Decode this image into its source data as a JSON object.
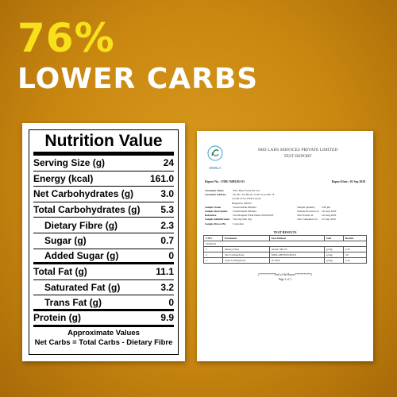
{
  "headline": {
    "big": "76%",
    "sub": "LOWER CARBS"
  },
  "nutrition": {
    "title": "Nutrition Value",
    "rows": [
      {
        "name": "Serving Size (g)",
        "value": "24"
      },
      {
        "name": "Energy (kcal)",
        "value": "161.0"
      },
      {
        "name": "Net Carbohydrates (g)",
        "value": "3.0"
      },
      {
        "name": "Total Carbohydrates (g)",
        "value": "5.3"
      },
      {
        "name": "Dietary Fibre (g)",
        "value": "2.3"
      },
      {
        "name": "Sugar (g)",
        "value": "0.7"
      },
      {
        "name": "Added Sugar (g)",
        "value": "0"
      },
      {
        "name": "Total Fat (g)",
        "value": "11.1"
      },
      {
        "name": "Saturated Fat (g)",
        "value": "3.2"
      },
      {
        "name": "Trans Fat (g)",
        "value": "0"
      },
      {
        "name": "Protein (g)",
        "value": "9.9"
      }
    ],
    "footnote_1": "Approximate Values",
    "footnote_2": "Net Carbs = Total Carbs - Dietary Fibre"
  },
  "report": {
    "logo_label": "SMSLA",
    "company": "SMS LABS SERVICES PRIVATE LIMITED",
    "doc_title": "TEST REPORT",
    "report_no_label": "Report No. :",
    "report_no": "FDB-76081102-03",
    "report_date_label": "Report Date :",
    "report_date": "01 Sep 2020",
    "info": [
      {
        "k": "Customer Name",
        "v": ": M/s. Baja Foods Pvt Ltd",
        "k2": "",
        "v2": ""
      },
      {
        "k": "Customer Address",
        "v": ": No.8C, 3rd Block, 14 D Cross, 8th ~8",
        "k2": "",
        "v2": ""
      },
      {
        "k": "",
        "v": "  1st/2D Cross, HSR Layout",
        "k2": "",
        "v2": ""
      },
      {
        "k": "",
        "v": "  Bangalore 560102",
        "k2": "",
        "v2": ""
      },
      {
        "k": "Sample Name",
        "v": ": South Indian Mixture",
        "k2": "Sample Quantity",
        "v2": ": 240 gm"
      },
      {
        "k": "Sample Description",
        "v": ": South Indian Mixture",
        "k2": "Sample Received on",
        "v2": ": 20 Aug 2020"
      },
      {
        "k": "Reference",
        "v": ": Test Request Form Dated 20.08.2020",
        "k2": "Test Started on",
        "v2": ": 20 Aug 2020"
      },
      {
        "k": "Sample Identification",
        "v": ": Serving Size 24g",
        "k2": "Test Completed on",
        "v2": ": 01 Sep 2020"
      },
      {
        "k": "Sample Drawn By",
        "v": ": Customer",
        "k2": "",
        "v2": ""
      }
    ],
    "results_title": "TEST RESULTS",
    "table_headers": [
      "S.NO",
      "Parameter",
      "Test Method",
      "Unit",
      "Results"
    ],
    "table_section": "Chemical",
    "table_rows": [
      [
        "1",
        "Dietary Fiber",
        "AOAC 985.29",
        "g/24g",
        "2.33"
      ],
      [
        "2",
        "Net Carbohydrate",
        "SMSLAB/FD/SOP/011",
        "g/24g",
        "3.0"
      ],
      [
        "3",
        "Total Carbohydrate",
        "IS 1656",
        "g/24g",
        "5.33"
      ]
    ],
    "end_text": "(***********End of the Report***********)",
    "page_text": "Page 1 of 1"
  }
}
